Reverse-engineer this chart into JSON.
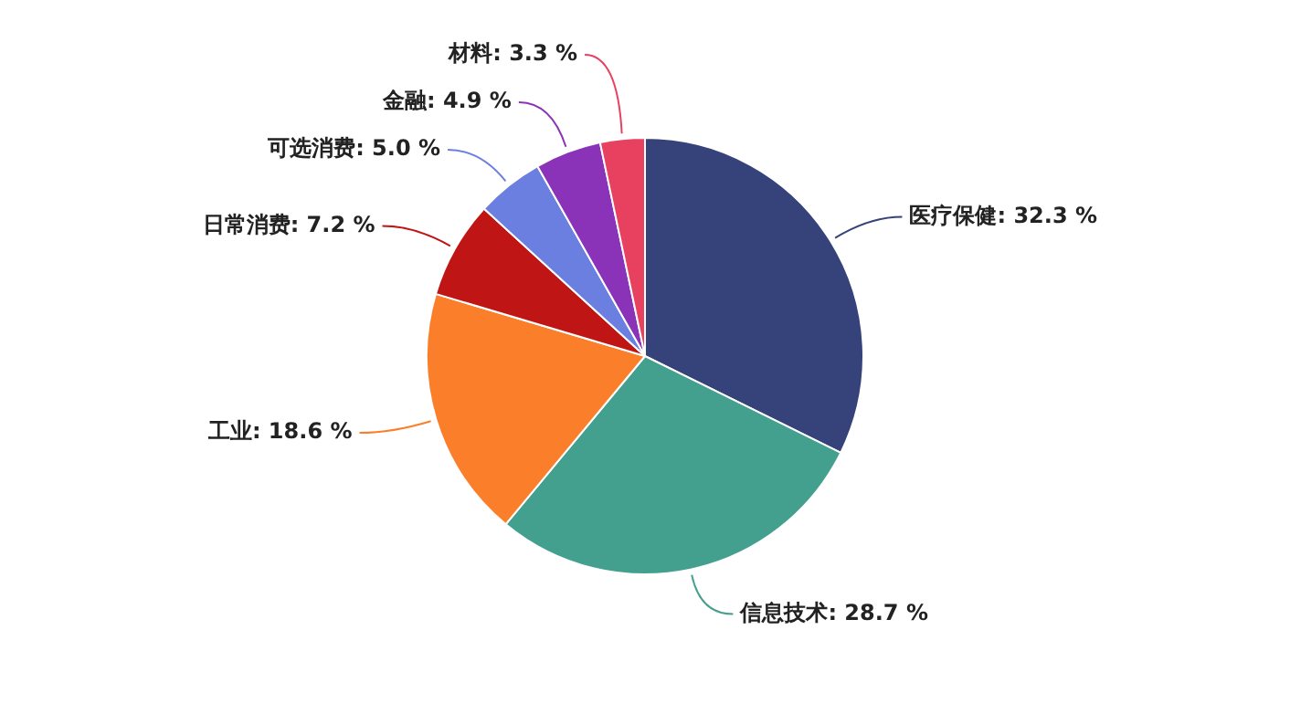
{
  "chart_data": {
    "type": "pie",
    "categories": [
      "医疗保健",
      "信息技术",
      "工业",
      "日常消费",
      "可选消费",
      "金融",
      "材料"
    ],
    "values": [
      32.3,
      28.7,
      18.6,
      7.2,
      5.0,
      4.9,
      3.3
    ],
    "value_labels": [
      "32.3 %",
      "28.7 %",
      "18.6 %",
      "7.2 %",
      "5.0 %",
      "4.9 %",
      "3.3 %"
    ],
    "colors": [
      "#36427a",
      "#43a08f",
      "#fb7f2b",
      "#c01515",
      "#6a7fe0",
      "#8a33b8",
      "#e8405f"
    ],
    "legend": false
  }
}
